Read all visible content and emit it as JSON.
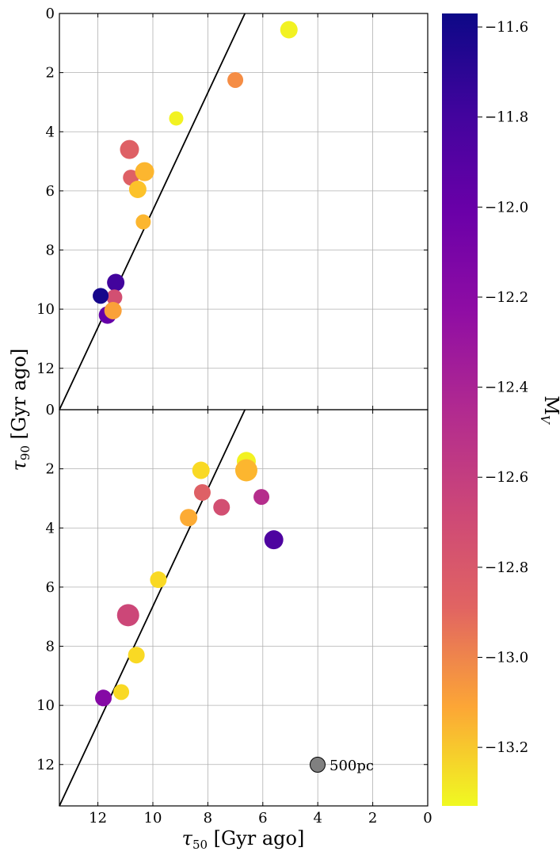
{
  "chart_data": {
    "type": "scatter",
    "x_axis": {
      "label": "τ50 [Gyr ago]",
      "range": [
        13.4,
        0
      ],
      "ticks": [
        12,
        10,
        8,
        6,
        4,
        2,
        0
      ],
      "tick_labels": [
        "12",
        "10",
        "8",
        "6",
        "4",
        "2",
        "0"
      ]
    },
    "y_axis": {
      "label": "τ90 [Gyr ago]",
      "range_top_panel": [
        0,
        13.4
      ],
      "range_bottom_panel": [
        0,
        13.4
      ],
      "ticks_top_panel": [
        0,
        2,
        4,
        6,
        8,
        10,
        12
      ],
      "tick_labels_top_panel": [
        "0",
        "2",
        "4",
        "6",
        "8",
        "10",
        "12"
      ],
      "ticks_bottom_panel": [
        0,
        2,
        4,
        6,
        8,
        10,
        12
      ],
      "tick_labels_bottom_panel": [
        "0",
        "2",
        "4",
        "6",
        "8",
        "10",
        "12"
      ],
      "inverted": true
    },
    "grid": true,
    "reference_line": "diagonal, from (0,0) in the lower-left corner to (6.65, 0) at the top edge",
    "colorbar": {
      "label": "MV",
      "colormap": "plasma",
      "range": [
        -13.33,
        -11.57
      ],
      "ticks": [
        -11.6,
        -11.8,
        -12.0,
        -12.2,
        -12.4,
        -12.6,
        -12.8,
        -13.0,
        -13.2
      ],
      "tick_labels": [
        "−11.6",
        "−11.8",
        "−12.0",
        "−12.2",
        "−12.4",
        "−12.6",
        "−12.8",
        "−13.0",
        "−13.2"
      ]
    },
    "size_legend": {
      "label": "500pc",
      "color": "#808080"
    },
    "panels": [
      {
        "name": "top",
        "points": [
          {
            "x": 5.05,
            "y": 0.55,
            "mv": -13.3,
            "size": 11
          },
          {
            "x": 7.0,
            "y": 2.25,
            "mv": -12.85,
            "size": 10
          },
          {
            "x": 9.15,
            "y": 3.55,
            "mv": -13.3,
            "size": 9
          },
          {
            "x": 10.85,
            "y": 4.6,
            "mv": -12.6,
            "size": 12
          },
          {
            "x": 10.8,
            "y": 5.55,
            "mv": -12.6,
            "size": 10
          },
          {
            "x": 10.3,
            "y": 5.35,
            "mv": -13.05,
            "size": 12
          },
          {
            "x": 10.55,
            "y": 5.95,
            "mv": -13.1,
            "size": 11
          },
          {
            "x": 10.35,
            "y": 7.05,
            "mv": -13.05,
            "size": 9.5
          },
          {
            "x": 11.35,
            "y": 9.1,
            "mv": -11.75,
            "size": 11
          },
          {
            "x": 11.4,
            "y": 9.6,
            "mv": -12.5,
            "size": 10
          },
          {
            "x": 11.9,
            "y": 9.55,
            "mv": -11.6,
            "size": 10
          },
          {
            "x": 11.65,
            "y": 10.2,
            "mv": -11.9,
            "size": 11
          },
          {
            "x": 11.45,
            "y": 10.05,
            "mv": -12.95,
            "size": 11
          }
        ]
      },
      {
        "name": "bottom",
        "points": [
          {
            "x": 6.6,
            "y": 1.75,
            "mv": -13.3,
            "size": 12
          },
          {
            "x": 6.6,
            "y": 2.05,
            "mv": -13.05,
            "size": 14
          },
          {
            "x": 8.25,
            "y": 2.05,
            "mv": -13.2,
            "size": 11
          },
          {
            "x": 8.2,
            "y": 2.8,
            "mv": -12.6,
            "size": 10.5
          },
          {
            "x": 7.5,
            "y": 3.3,
            "mv": -12.5,
            "size": 10.5
          },
          {
            "x": 6.05,
            "y": 2.95,
            "mv": -12.3,
            "size": 10
          },
          {
            "x": 8.7,
            "y": 3.65,
            "mv": -13.0,
            "size": 11
          },
          {
            "x": 5.6,
            "y": 4.4,
            "mv": -11.8,
            "size": 12
          },
          {
            "x": 9.8,
            "y": 5.75,
            "mv": -13.2,
            "size": 10.5
          },
          {
            "x": 10.9,
            "y": 6.95,
            "mv": -12.45,
            "size": 14
          },
          {
            "x": 10.6,
            "y": 8.3,
            "mv": -13.2,
            "size": 10.5
          },
          {
            "x": 11.15,
            "y": 9.55,
            "mv": -13.2,
            "size": 10
          },
          {
            "x": 11.8,
            "y": 9.75,
            "mv": -12.05,
            "size": 10.5
          }
        ]
      }
    ]
  }
}
